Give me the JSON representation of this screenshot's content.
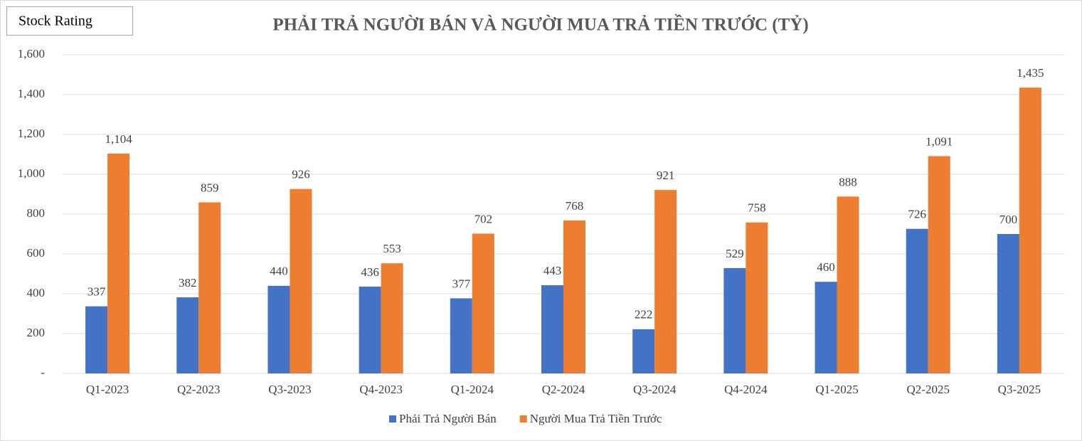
{
  "chart_data": {
    "type": "bar",
    "title": "PHẢI TRẢ NGƯỜI BÁN VÀ NGƯỜI MUA TRẢ TIỀN TRƯỚC (TỶ)",
    "annotations": [
      "Stock Rating"
    ],
    "categories": [
      "Q1-2023",
      "Q2-2023",
      "Q3-2023",
      "Q4-2023",
      "Q1-2024",
      "Q2-2024",
      "Q3-2024",
      "Q4-2024",
      "Q1-2025",
      "Q2-2025",
      "Q3-2025"
    ],
    "series": [
      {
        "name": "Phải Trả Người Bán",
        "color": "#4472c4",
        "values": [
          337,
          382,
          440,
          436,
          377,
          443,
          222,
          529,
          460,
          726,
          700
        ],
        "value_labels": [
          "337",
          "382",
          "440",
          "436",
          "377",
          "443",
          "222",
          "529",
          "460",
          "726",
          "700"
        ]
      },
      {
        "name": "Người Mua Trả Tiền Trước",
        "color": "#ed7d31",
        "values": [
          1104,
          859,
          926,
          553,
          702,
          768,
          921,
          758,
          888,
          1091,
          1435
        ],
        "value_labels": [
          "1,104",
          "859",
          "926",
          "553",
          "702",
          "768",
          "921",
          "758",
          "888",
          "1,091",
          "1,435"
        ]
      }
    ],
    "ylim": [
      0,
      1600
    ],
    "yticks": [
      {
        "value": 0,
        "label": "-"
      },
      200,
      400,
      600,
      800,
      {
        "value": 1000,
        "label": "1,000"
      },
      {
        "value": 1200,
        "label": "1,200"
      },
      {
        "value": 1400,
        "label": "1,400"
      },
      {
        "value": 1600,
        "label": "1,600"
      }
    ],
    "grid": true,
    "legend": "bottom"
  }
}
